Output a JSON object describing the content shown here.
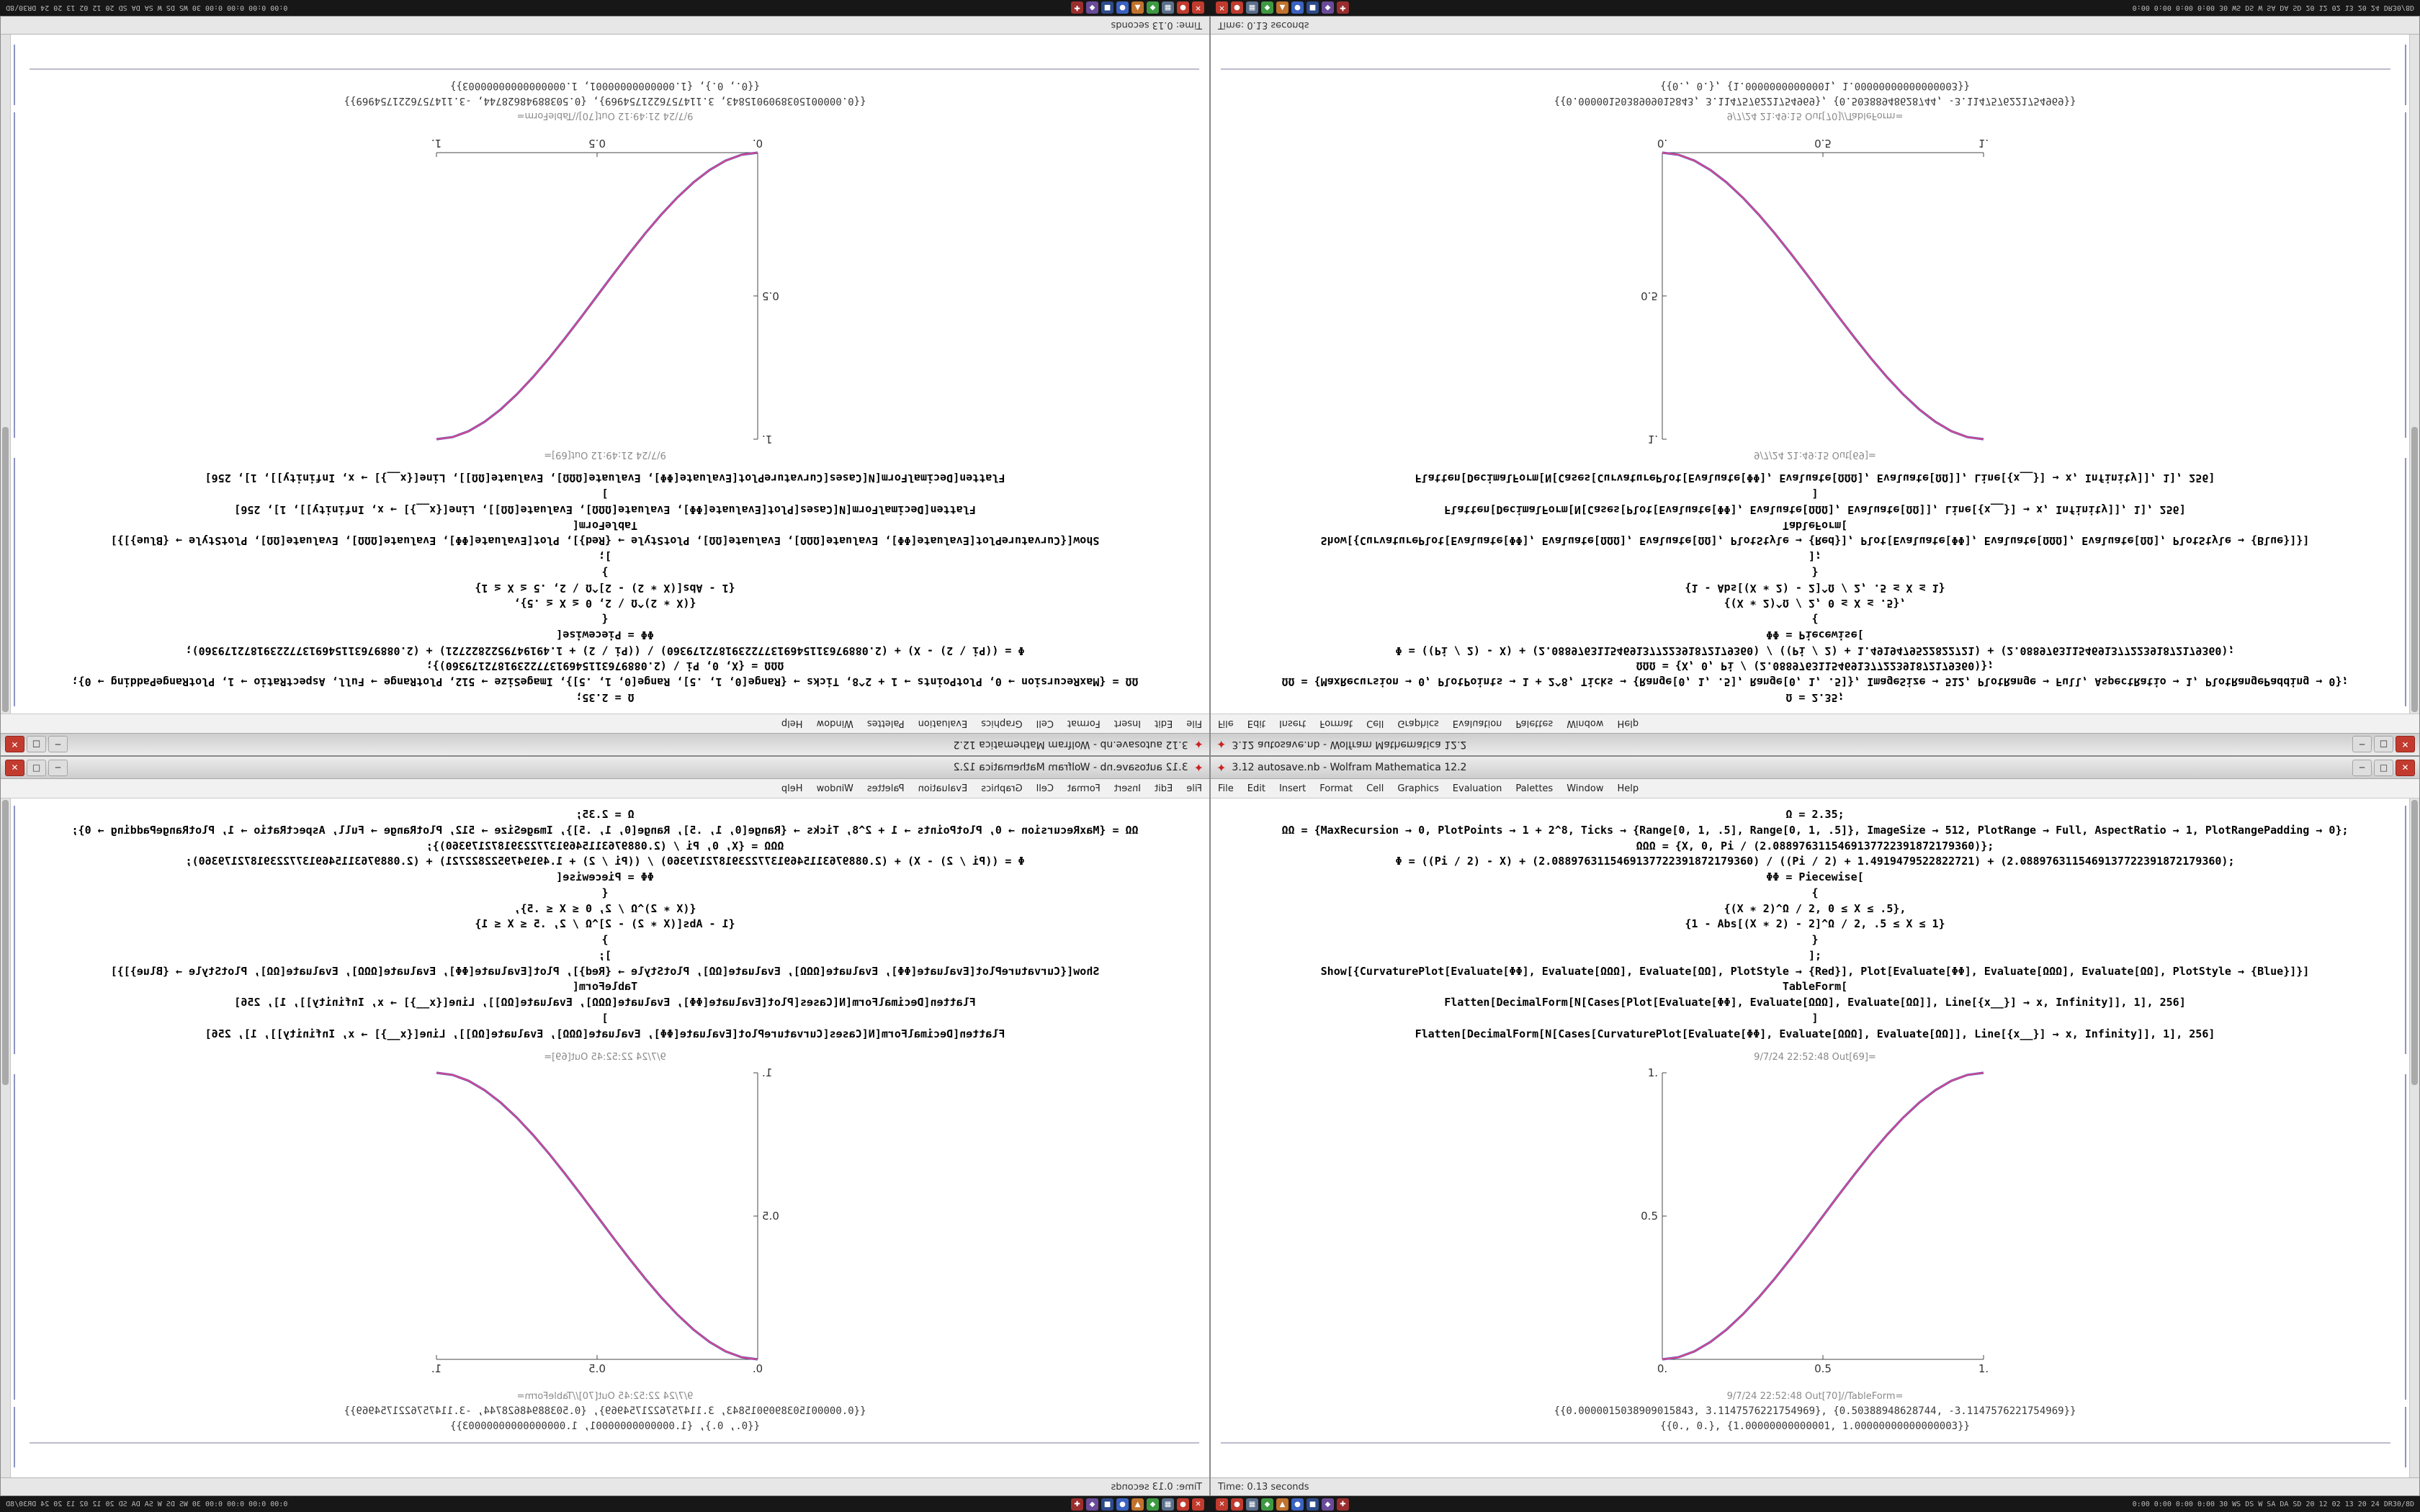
{
  "desktop": {
    "taskbar": {
      "app_icons": [
        {
          "name": "taskbar-icon-red-close",
          "color": "#c03b2e",
          "glyph": "✕"
        },
        {
          "name": "taskbar-icon-red-record",
          "color": "#c03b2e",
          "glyph": "●"
        },
        {
          "name": "taskbar-icon-slate-grid",
          "color": "#5a6f8a",
          "glyph": "▦"
        },
        {
          "name": "taskbar-icon-green",
          "color": "#3d9942",
          "glyph": "◆"
        },
        {
          "name": "taskbar-icon-orange",
          "color": "#c0722e",
          "glyph": "▲"
        },
        {
          "name": "taskbar-icon-blue",
          "color": "#3b62c0",
          "glyph": "●"
        },
        {
          "name": "taskbar-icon-navy",
          "color": "#2e4b8a",
          "glyph": "■"
        },
        {
          "name": "taskbar-icon-purple",
          "color": "#6a4b9a",
          "glyph": "◆"
        },
        {
          "name": "taskbar-icon-darkred",
          "color": "#9a2e2e",
          "glyph": "✚"
        }
      ],
      "status_right": "0:00 0:00 0:00 0:00 30 WS DS W SA DA SD 20 12 02 13 20 24 DR30/8D"
    }
  },
  "notebook": {
    "title": "3.12 autosave.nb - Wolfram Mathematica 12.2",
    "app_icon_glyph": "✦",
    "menu": [
      "File",
      "Edit",
      "Insert",
      "Format",
      "Cell",
      "Graphics",
      "Evaluation",
      "Palettes",
      "Window",
      "Help"
    ],
    "window_buttons": {
      "minimize": "─",
      "maximize": "□",
      "close": "✕"
    },
    "code_lines": [
      "Ω = 2.35;",
      "ΩΩ = {MaxRecursion → 0, PlotPoints → 1 + 2^8, Ticks → {Range[0, 1, .5], Range[0, 1, .5]}, ImageSize → 512, PlotRange → Full, AspectRatio → 1, PlotRangePadding → 0};",
      "ΩΩΩ = {X, 0, Pi / (2.0889763115469137722391872179360)};",
      "Φ = ((Pi / 2) - X) + (2.0889763115469137722391872179360) / ((Pi / 2) + 1.4919479522822721) + (2.0889763115469137722391872179360);",
      "ΦΦ = Piecewise[",
      "{",
      "{(X ∗ 2)^Ω / 2, 0 ≤ X ≤ .5},",
      "{1 - Abs[(X ∗ 2) - 2]^Ω / 2, .5 ≤ X ≤ 1}",
      "}",
      "];",
      "Show[{CurvaturePlot[Evaluate[ΦΦ], Evaluate[ΩΩΩ], Evaluate[ΩΩ], PlotStyle → {Red}], Plot[Evaluate[ΦΦ], Evaluate[ΩΩΩ], Evaluate[ΩΩ], PlotStyle → {Blue}]}]",
      "TableForm[",
      "Flatten[DecimalForm[N[Cases[Plot[Evaluate[ΦΦ], Evaluate[ΩΩΩ], Evaluate[ΩΩ]], Line[{x__}] → x, Infinity]], 1], 256]",
      "]",
      "Flatten[DecimalForm[N[Cases[CurvaturePlot[Evaluate[ΦΦ], Evaluate[ΩΩΩ], Evaluate[ΩΩ]], Line[{x__}] → x, Infinity]], 1], 256]"
    ],
    "results": {
      "row1": "{{0.0000015038909015843, 3.1147576221754969}, {0.50388948628744, -3.1147576221754969}}",
      "row2": "{{0., 0.}, {1.00000000000001, 1.00000000000000003}}"
    },
    "status_left": "Time: 0.13 seconds"
  },
  "quadrants": [
    {
      "id": "top-left",
      "orientation": "rotated-180",
      "out1_label": "9/7/24 21:49:12 Out[69]=",
      "out2_label": "9/7/24 21:49:12 Out[70]//TableForm="
    },
    {
      "id": "top-right",
      "orientation": "flipped-vertical",
      "out1_label": "9/7/24 21:49:15 Out[69]=",
      "out2_label": "9/7/24 21:49:15 Out[70]//TableForm="
    },
    {
      "id": "bottom-left",
      "orientation": "mirrored-horizontal",
      "out1_label": "9/7/24 22:52:45 Out[69]=",
      "out2_label": "9/7/24 22:52:45 Out[70]//TableForm="
    },
    {
      "id": "bottom-right",
      "orientation": "normal",
      "out1_label": "9/7/24 22:52:48 Out[69]=",
      "out2_label": "9/7/24 22:52:48 Out[70]//TableForm="
    }
  ],
  "chart_data": {
    "type": "line",
    "title": "",
    "xlabel": "",
    "ylabel": "",
    "xlim": [
      0,
      1
    ],
    "ylim": [
      0,
      1
    ],
    "grid": false,
    "legend": null,
    "xticks": [
      "0.",
      "0.5",
      "1."
    ],
    "yticks": [
      "0.5",
      "1."
    ],
    "series": [
      {
        "name": "CurvaturePlot (Red)",
        "color": "#e2487d"
      },
      {
        "name": "Plot (Blue)",
        "color": "#5b54cf"
      }
    ],
    "x": [
      0,
      0.05,
      0.1,
      0.15,
      0.2,
      0.25,
      0.3,
      0.35,
      0.4,
      0.45,
      0.5,
      0.55,
      0.6,
      0.65,
      0.7,
      0.75,
      0.8,
      0.85,
      0.9,
      0.95,
      1
    ],
    "y": [
      0,
      0.00725,
      0.028,
      0.06075,
      0.104,
      0.15625,
      0.216,
      0.28175,
      0.352,
      0.42525,
      0.5,
      0.57475,
      0.648,
      0.71825,
      0.784,
      0.84375,
      0.896,
      0.93925,
      0.972,
      0.99275,
      1
    ]
  }
}
